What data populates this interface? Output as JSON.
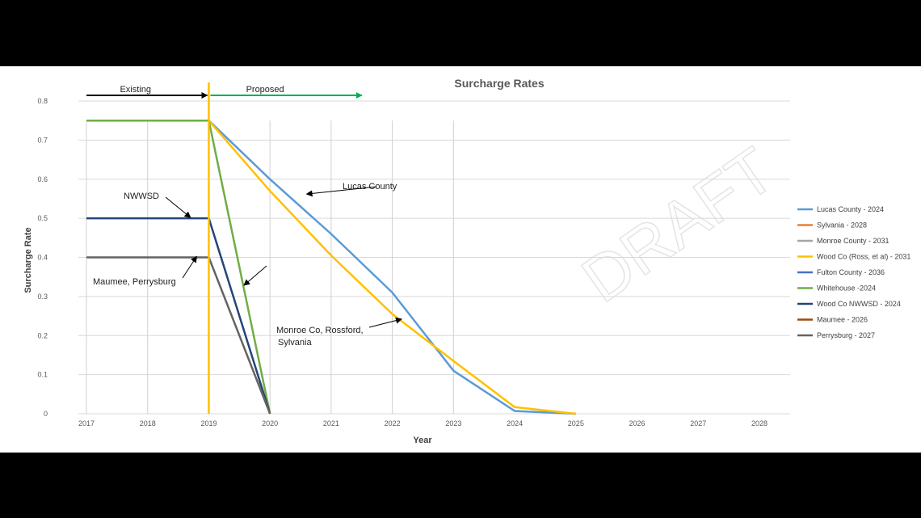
{
  "chart_data": {
    "type": "line",
    "title": "Surcharge Rates",
    "xlabel": "Year",
    "ylabel": "Surcharge Rate",
    "x": [
      2017,
      2018,
      2019,
      2020,
      2021,
      2022,
      2023,
      2024,
      2025,
      2026,
      2027,
      2028
    ],
    "xlim": [
      2017,
      2028
    ],
    "ylim": [
      0,
      0.8
    ],
    "yticks": [
      "0",
      "0.1",
      "0.2",
      "0.3",
      "0.4",
      "0.5",
      "0.6",
      "0.7",
      "0.8"
    ],
    "legend_position": "right",
    "series": [
      {
        "name": "Lucas County - 2024",
        "color": "#5B9BD5",
        "points": [
          [
            2019,
            0.75
          ],
          [
            2020,
            0.6
          ],
          [
            2021,
            0.46
          ],
          [
            2022,
            0.31
          ],
          [
            2023,
            0.11
          ],
          [
            2024,
            0.007
          ],
          [
            2025,
            0
          ]
        ]
      },
      {
        "name": "Sylvania - 2028",
        "color": "#ED7D31",
        "points": []
      },
      {
        "name": "Monroe County - 2031",
        "color": "#A5A5A5",
        "points": []
      },
      {
        "name": "Wood Co (Ross, et al) - 2031",
        "color": "#FFC000",
        "points": [
          [
            2017,
            0.75
          ],
          [
            2019,
            0.75
          ],
          [
            2020,
            0.57
          ],
          [
            2021,
            0.405
          ],
          [
            2022,
            0.255
          ],
          [
            2023,
            0.135
          ],
          [
            2024,
            0.017
          ],
          [
            2025,
            0
          ]
        ]
      },
      {
        "name": "Fulton County - 2036",
        "color": "#4472C4",
        "points": []
      },
      {
        "name": "Whitehouse -2024",
        "color": "#70AD47",
        "points": [
          [
            2017,
            0.75
          ],
          [
            2019,
            0.75
          ],
          [
            2020,
            0
          ]
        ]
      },
      {
        "name": "Wood Co NWWSD - 2024",
        "color": "#264478",
        "points": [
          [
            2017,
            0.5
          ],
          [
            2019,
            0.5
          ],
          [
            2020,
            0
          ]
        ]
      },
      {
        "name": "Maumee - 2026",
        "color": "#9E480E",
        "points": []
      },
      {
        "name": "Perrysburg - 2027",
        "color": "#636363",
        "points": [
          [
            2017,
            0.4
          ],
          [
            2019,
            0.4
          ],
          [
            2020,
            0
          ]
        ]
      }
    ],
    "phase_divider_x": 2019,
    "phases": [
      {
        "label": "Existing",
        "color": "#000000",
        "from": 2017,
        "to": 2019
      },
      {
        "label": "Proposed",
        "color": "#00B050",
        "from": 2019,
        "to": 2021.5
      }
    ],
    "annotations": [
      {
        "text": "Lucas County",
        "target": [
          2020.6,
          0.56
        ]
      },
      {
        "text": "NWWSD",
        "target": [
          2018.7,
          0.5
        ]
      },
      {
        "text": "Maumee, Perrysburg",
        "target": [
          2018.8,
          0.4
        ]
      },
      {
        "text": "Monroe Co, Rossford,",
        "target": [
          2022.15,
          0.24
        ]
      },
      {
        "text": "Sylvania",
        "target": null
      }
    ],
    "watermark": "DRAFT"
  }
}
